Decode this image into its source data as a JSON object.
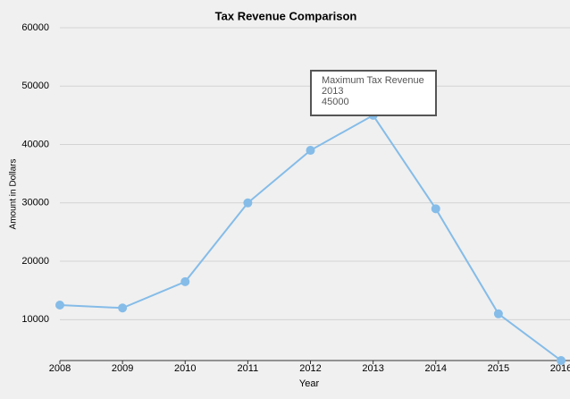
{
  "chart_data": {
    "type": "line",
    "title": "Tax Revenue Comparison",
    "x_label": "Year",
    "y_label": "Amount in Dollars",
    "x": [
      2008,
      2009,
      2010,
      2011,
      2012,
      2013,
      2014,
      2015,
      2016
    ],
    "series": [
      {
        "name": "Tax Revenue",
        "color": "#85bce8",
        "values": [
          12500,
          12000,
          16500,
          30000,
          39000,
          45000,
          29000,
          11000,
          3000
        ]
      }
    ],
    "xlim": [
      2008,
      2016
    ],
    "xticks": [
      2008,
      2009,
      2010,
      2011,
      2012,
      2013,
      2014,
      2015,
      2016
    ],
    "ylim": [
      3000,
      60000
    ],
    "yticks": [
      10000,
      20000,
      30000,
      40000,
      50000,
      60000
    ],
    "grid": true,
    "annotation": {
      "title": "Maximum Tax Revenue",
      "x": "2013",
      "y": "45000"
    }
  }
}
